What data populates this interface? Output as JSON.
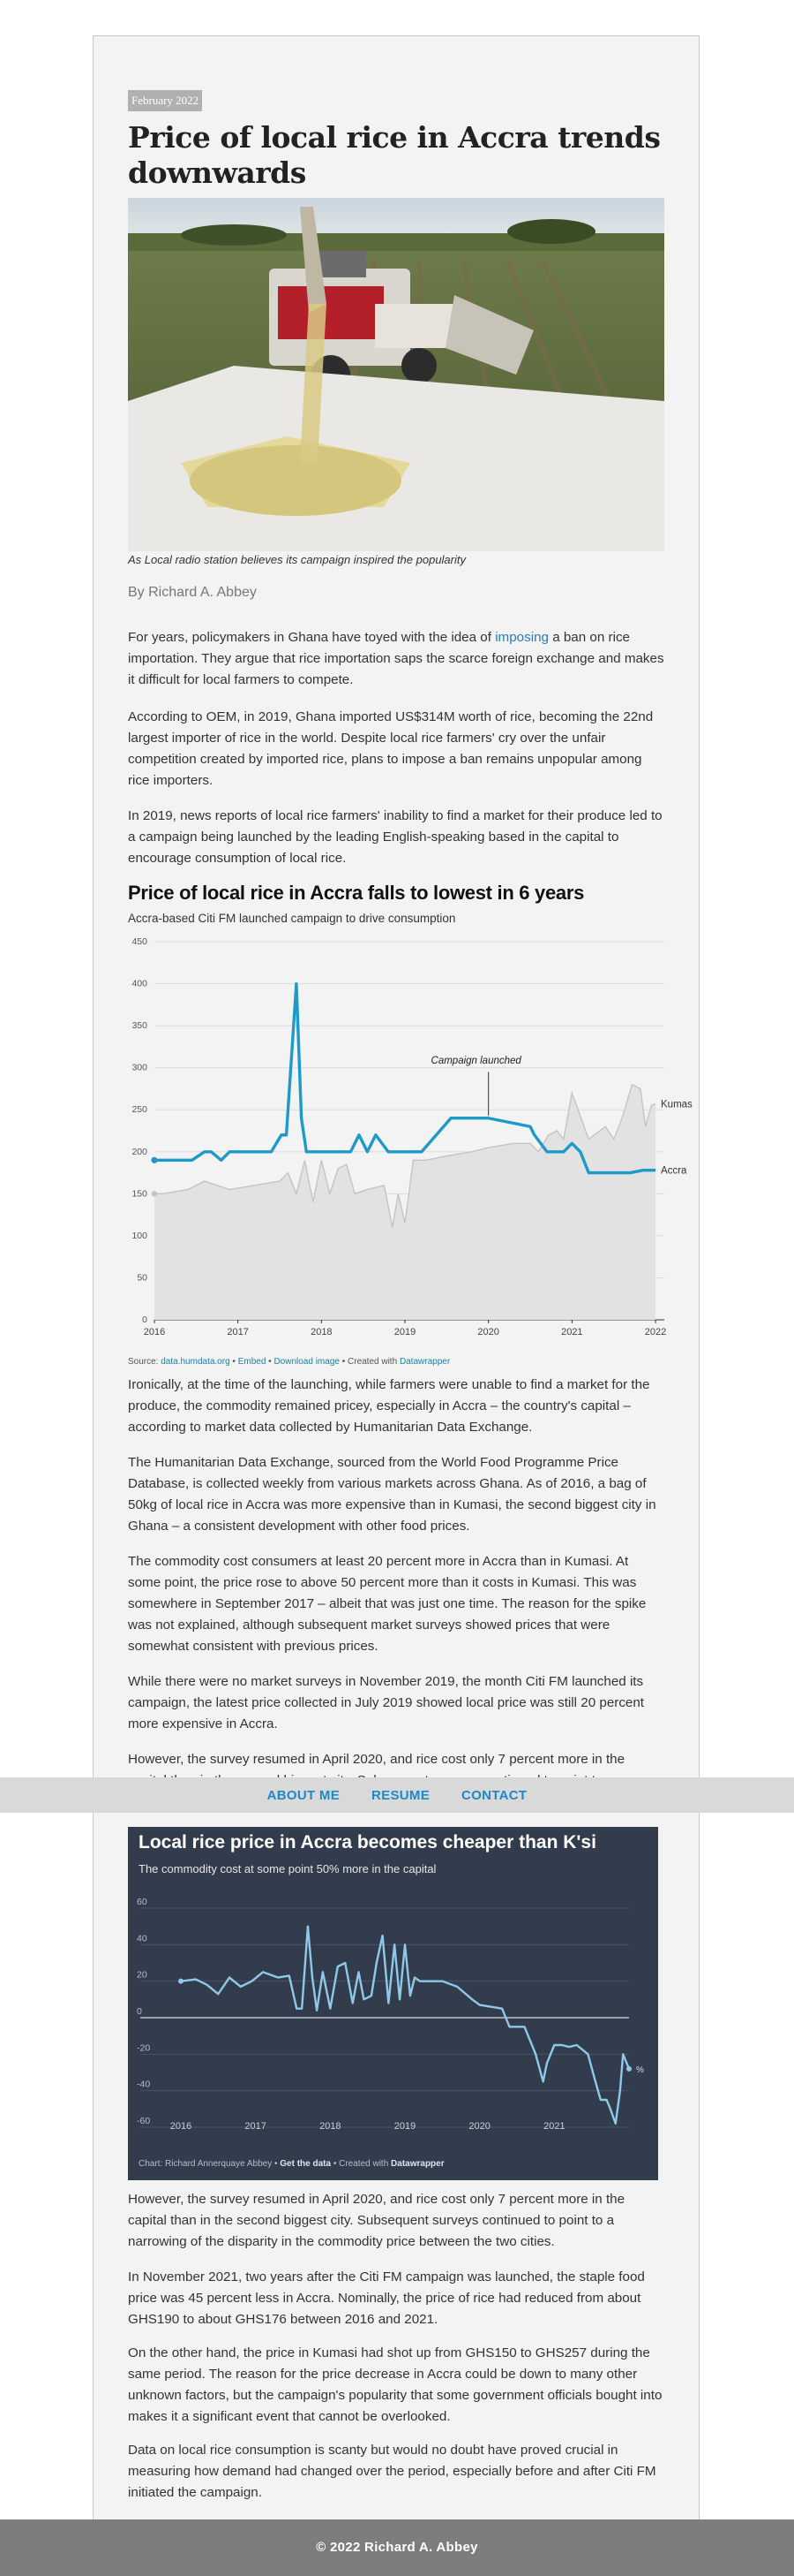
{
  "article": {
    "date": "February 2022",
    "headline": "Price of local rice in Accra trends downwards",
    "image_caption": "As Local radio station believes its campaign inspired the popularity",
    "byline": "By Richard A. Abbey",
    "paragraphs_top": [
      {
        "before": "For years, policymakers in Ghana have toyed with the idea of ",
        "link": "imposing",
        "after": " a ban on rice importation. They argue that rice importation saps the scarce foreign exchange and makes it difficult for local farmers to compete."
      },
      {
        "text": "According to OEM, in 2019, Ghana imported US$314M worth of rice, becoming the 22nd largest importer of rice in the world. Despite local rice farmers' cry over the unfair competition created by imported rice, plans to impose a ban remains unpopular among rice importers."
      },
      {
        "text": "In 2019, news reports of local rice farmers' inability to find a market for their produce led to a campaign being launched by the leading English-speaking based in the capital to encourage consumption of local rice."
      }
    ],
    "paragraphs_mid": [
      "Ironically, at the time of the launching, while farmers were unable to find a market for the produce, the commodity remained pricey, especially in Accra – the country's capital – according to market data collected by Humanitarian Data Exchange.",
      "The Humanitarian Data Exchange, sourced from the World Food Programme Price Database, is collected weekly from various markets across Ghana. As of 2016, a bag of 50kg of local rice in Accra was more expensive than in Kumasi, the second biggest city in Ghana – a consistent development with other food prices.",
      "The commodity cost consumers at least 20 percent more in Accra than in Kumasi. At some point, the price rose to above 50 percent more than it costs in Kumasi. This was somewhere in September 2017 – albeit that was just one time. The reason for the spike was not explained, although subsequent market surveys showed prices that were somewhat consistent with previous prices.",
      "While there were no market surveys in November 2019, the month Citi FM launched its campaign, the latest price collected in July 2019 showed local price was still 20 percent more expensive in Accra.",
      "However, the survey resumed in April 2020, and rice cost only 7 percent more in the capital than in the second biggest city. Subsequent surveys continued to point to a"
    ],
    "paragraphs_bottom": [
      "However, the survey resumed in April 2020, and rice cost only 7 percent more in the capital than in the second biggest city. Subsequent surveys continued to point to a narrowing of the disparity in the commodity price between the two cities.",
      "In November 2021, two years after the Citi FM campaign was launched, the staple food price was 45 percent less in Accra. Nominally, the price of rice had reduced from about GHS190 to about GHS176 between 2016 and 2021.",
      "On the other hand, the price in Kumasi had shot up from GHS150 to GHS257 during the same period. The reason for the price decrease in Accra could be down to many other unknown factors, but the campaign's popularity that some government officials bought into makes it a significant event that cannot be overlooked.",
      "Data on local rice consumption is scanty but would no doubt have proved crucial in measuring how demand had changed over the period, especially before and after Citi FM initiated the campaign."
    ]
  },
  "nav": {
    "items": [
      "ABOUT ME",
      "RESUME",
      "CONTACT"
    ]
  },
  "footer": {
    "text": "© 2022 Richard A. Abbey"
  },
  "chart1_footer": {
    "source_label": "Source: ",
    "source_link": "data.humdata.org",
    "sep1": " • ",
    "embed": "Embed",
    "sep2": " • ",
    "download": "Download image",
    "created": " • Created with ",
    "tool": "Datawrapper"
  },
  "chart2_footer": {
    "credit": "Chart: Richard Annerquaye Abbey • ",
    "get_data": "Get the data",
    "created": " • Created with ",
    "tool": "Datawrapper"
  },
  "colors": {
    "accra_line": "#1d9ac9",
    "kumasi_area": "#e2e2e2",
    "chart2_bg": "#333c4d",
    "chart2_line": "#8ec9e8",
    "link": "#2a7ab8",
    "nav_link": "#1e88c8"
  },
  "chart_data": [
    {
      "type": "line",
      "title": "Price of local rice in Accra falls to lowest in 6 years",
      "subtitle": "Accra-based Citi FM launched campaign to drive consumption",
      "x_ticks": [
        "2016",
        "2017",
        "2018",
        "2019",
        "2020",
        "2021",
        "2022"
      ],
      "y_ticks": [
        0,
        50,
        100,
        150,
        200,
        250,
        300,
        350,
        400,
        450
      ],
      "ylim": [
        0,
        450
      ],
      "xlim": [
        2016,
        2022
      ],
      "annotation": "Campaign launched",
      "series": [
        {
          "name": "Accra",
          "x": [
            2016.0,
            2016.2,
            2016.45,
            2016.6,
            2016.68,
            2016.8,
            2016.9,
            2017.0,
            2017.25,
            2017.4,
            2017.52,
            2017.58,
            2017.7,
            2017.76,
            2017.82,
            2018.0,
            2018.2,
            2018.35,
            2018.45,
            2018.55,
            2018.65,
            2018.8,
            2019.0,
            2019.2,
            2019.55,
            2019.7,
            2020.0,
            2020.25,
            2020.5,
            2020.55,
            2020.7,
            2020.9,
            2021.0,
            2021.1,
            2021.2,
            2021.5,
            2021.7,
            2021.85,
            2022.0
          ],
          "y": [
            190,
            190,
            190,
            200,
            200,
            190,
            200,
            200,
            200,
            200,
            220,
            220,
            400,
            240,
            200,
            200,
            200,
            200,
            220,
            200,
            220,
            200,
            200,
            200,
            240,
            240,
            240,
            235,
            230,
            220,
            200,
            200,
            210,
            200,
            175,
            175,
            175,
            178,
            178
          ]
        },
        {
          "name": "Kumasi",
          "x": [
            2016.0,
            2016.1,
            2016.4,
            2016.6,
            2016.9,
            2017.2,
            2017.5,
            2017.6,
            2017.7,
            2017.8,
            2017.9,
            2018.0,
            2018.1,
            2018.2,
            2018.3,
            2018.4,
            2018.55,
            2018.75,
            2018.85,
            2018.92,
            2019.0,
            2019.1,
            2019.2,
            2019.25,
            2019.5,
            2019.8,
            2020.0,
            2020.3,
            2020.5,
            2020.6,
            2020.72,
            2020.82,
            2020.9,
            2021.0,
            2021.2,
            2021.4,
            2021.5,
            2021.6,
            2021.72,
            2021.82,
            2021.88,
            2021.95,
            2022.0
          ],
          "y": [
            150,
            150,
            155,
            165,
            155,
            160,
            165,
            175,
            150,
            190,
            140,
            190,
            150,
            180,
            185,
            150,
            155,
            160,
            110,
            150,
            115,
            190,
            190,
            190,
            195,
            200,
            205,
            210,
            210,
            200,
            220,
            225,
            215,
            270,
            215,
            230,
            215,
            240,
            280,
            275,
            230,
            255,
            257
          ]
        }
      ]
    },
    {
      "type": "line",
      "title": "Local rice price in Accra becomes cheaper than K'si",
      "subtitle": "The commodity cost at some point 50% more in the capital",
      "x_ticks": [
        "2016",
        "2017",
        "2018",
        "2019",
        "2020",
        "2021"
      ],
      "y_ticks": [
        60,
        40,
        20,
        0,
        -20,
        -40,
        -60
      ],
      "ylim": [
        -60,
        60
      ],
      "xlim": [
        2016,
        2022
      ],
      "end_label": "%",
      "series": [
        {
          "name": "",
          "x": [
            2016.0,
            2016.2,
            2016.35,
            2016.5,
            2016.65,
            2016.8,
            2016.95,
            2017.1,
            2017.3,
            2017.45,
            2017.55,
            2017.62,
            2017.7,
            2017.76,
            2017.82,
            2017.9,
            2018.0,
            2018.1,
            2018.2,
            2018.3,
            2018.38,
            2018.45,
            2018.55,
            2018.62,
            2018.7,
            2018.78,
            2018.86,
            2018.93,
            2019.0,
            2019.07,
            2019.13,
            2019.2,
            2019.3,
            2019.5,
            2019.7,
            2019.9,
            2020.0,
            2020.3,
            2020.4,
            2020.45,
            2020.6,
            2020.75,
            2020.85,
            2020.9,
            2021.0,
            2021.1,
            2021.2,
            2021.3,
            2021.45,
            2021.55,
            2021.62,
            2021.7,
            2021.75,
            2021.82,
            2021.88,
            2021.92,
            2021.97,
            2022.0
          ],
          "y": [
            20,
            21,
            18,
            13,
            22,
            17,
            20,
            25,
            22,
            23,
            5,
            5,
            50,
            22,
            4,
            25,
            5,
            28,
            30,
            8,
            25,
            10,
            12,
            30,
            45,
            8,
            40,
            10,
            40,
            12,
            22,
            20,
            20,
            20,
            17,
            10,
            7,
            5,
            -5,
            -5,
            -5,
            -20,
            -35,
            -25,
            -15,
            -15,
            -16,
            -15,
            -20,
            -35,
            -45,
            -45,
            -50,
            -58,
            -40,
            -20,
            -25,
            -28
          ]
        }
      ]
    }
  ]
}
